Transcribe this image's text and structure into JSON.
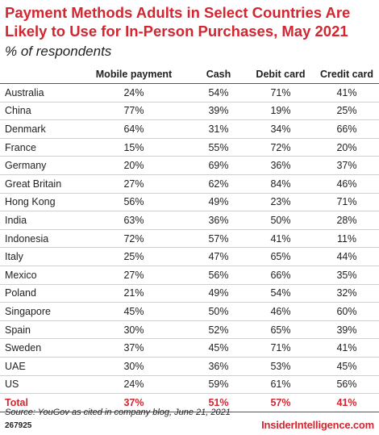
{
  "chart_data": {
    "type": "table",
    "title": "Payment Methods Adults in Select Countries Are Likely to Use for In-Person Purchases, May 2021",
    "subtitle": "% of respondents",
    "columns": [
      "",
      "Mobile payment",
      "Cash",
      "Debit card",
      "Credit card"
    ],
    "rows": [
      [
        "Australia",
        "24%",
        "54%",
        "71%",
        "41%"
      ],
      [
        "China",
        "77%",
        "39%",
        "19%",
        "25%"
      ],
      [
        "Denmark",
        "64%",
        "31%",
        "34%",
        "66%"
      ],
      [
        "France",
        "15%",
        "55%",
        "72%",
        "20%"
      ],
      [
        "Germany",
        "20%",
        "69%",
        "36%",
        "37%"
      ],
      [
        "Great Britain",
        "27%",
        "62%",
        "84%",
        "46%"
      ],
      [
        "Hong Kong",
        "56%",
        "49%",
        "23%",
        "71%"
      ],
      [
        "India",
        "63%",
        "36%",
        "50%",
        "28%"
      ],
      [
        "Indonesia",
        "72%",
        "57%",
        "41%",
        "11%"
      ],
      [
        "Italy",
        "25%",
        "47%",
        "65%",
        "44%"
      ],
      [
        "Mexico",
        "27%",
        "56%",
        "66%",
        "35%"
      ],
      [
        "Poland",
        "21%",
        "49%",
        "54%",
        "32%"
      ],
      [
        "Singapore",
        "45%",
        "50%",
        "46%",
        "60%"
      ],
      [
        "Spain",
        "30%",
        "52%",
        "65%",
        "39%"
      ],
      [
        "Sweden",
        "37%",
        "45%",
        "71%",
        "41%"
      ],
      [
        "UAE",
        "30%",
        "36%",
        "53%",
        "45%"
      ],
      [
        "US",
        "24%",
        "59%",
        "61%",
        "56%"
      ]
    ],
    "total": [
      "Total",
      "37%",
      "51%",
      "57%",
      "41%"
    ]
  },
  "footer": {
    "source": "Source: YouGov as cited in company blog, June 21, 2021",
    "chart_id": "267925",
    "brand": "InsiderIntelligence.com"
  },
  "colors": {
    "accent": "#d22630",
    "text": "#222222",
    "rule": "#cfcfcf"
  }
}
